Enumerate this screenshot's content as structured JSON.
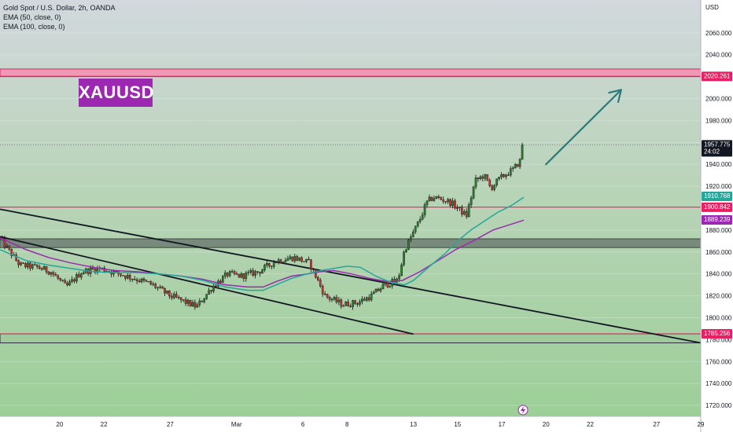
{
  "legend": {
    "symbol": "Gold Spot / U.S. Dollar, 2h, OANDA",
    "ema50": "EMA (50, close, 0)",
    "ema100": "EMA (100, close, 0)"
  },
  "label": "XAUUSD",
  "chart_data": {
    "type": "candlestick",
    "currency": "USD",
    "ylim": [
      1710,
      2090
    ],
    "y_ticks": [
      "1720.000",
      "1740.000",
      "1760.000",
      "1780.000",
      "1800.000",
      "1820.000",
      "1840.000",
      "1860.000",
      "1880.000",
      "1900.000",
      "1920.000",
      "1940.000",
      "1960.000",
      "1980.000",
      "2000.000",
      "2020.000",
      "2040.000",
      "2060.000"
    ],
    "x_ticks": [
      "20",
      "22",
      "27",
      "Mar",
      "6",
      "8",
      "13",
      "15",
      "17",
      "20",
      "22",
      "27",
      "29"
    ],
    "x_tick_positions": [
      0,
      2,
      5,
      8,
      11,
      13,
      16,
      18,
      20,
      22,
      24,
      27,
      29
    ],
    "x_last_candle": 21,
    "x_range": [
      -2.7,
      29
    ],
    "price": 1957.775,
    "countdown": "24:02",
    "price_series_days": [
      -2.7,
      -1.8,
      -1.0,
      -0.4,
      0.3,
      1.0,
      1.8,
      2.7,
      3.5,
      4.2,
      5.0,
      5.6,
      6.2,
      6.9,
      7.6,
      8.2,
      9.0,
      9.8,
      10.6,
      11.3,
      12.0,
      12.8,
      13.5,
      14.1,
      14.7,
      15.3,
      15.6,
      16.0,
      16.3,
      16.6,
      16.9,
      17.3,
      17.7,
      18.0,
      18.4,
      18.8,
      19.2,
      19.5,
      19.8,
      20.1,
      20.5,
      20.9,
      21.0
    ],
    "price_series": [
      1872,
      1848,
      1846,
      1842,
      1828,
      1842,
      1845,
      1840,
      1835,
      1830,
      1820,
      1815,
      1810,
      1828,
      1840,
      1838,
      1842,
      1852,
      1855,
      1850,
      1820,
      1812,
      1814,
      1820,
      1830,
      1834,
      1862,
      1878,
      1890,
      1905,
      1910,
      1908,
      1905,
      1900,
      1893,
      1925,
      1930,
      1918,
      1925,
      1930,
      1935,
      1945,
      1957
    ],
    "ema50": [
      1862,
      1852,
      1848,
      1845,
      1842,
      1841,
      1841,
      1840,
      1838,
      1834,
      1828,
      1825,
      1825,
      1830,
      1836,
      1840,
      1843,
      1845,
      1847,
      1846,
      1838,
      1832,
      1830,
      1834,
      1848,
      1858,
      1870,
      1880,
      1888,
      1896,
      1902,
      1910
    ],
    "ema50_days": [
      -2.7,
      -1.5,
      -0.5,
      0.5,
      1.5,
      2.5,
      3.5,
      4.5,
      5.5,
      6.5,
      7.5,
      8.5,
      9.2,
      9.8,
      10.5,
      11.2,
      11.8,
      12.4,
      13.0,
      13.6,
      14.3,
      15.0,
      15.6,
      16.0,
      16.8,
      17.4,
      18.0,
      18.6,
      19.2,
      19.8,
      20.4,
      21.0
    ],
    "ema100": [
      1873,
      1862,
      1855,
      1850,
      1846,
      1843,
      1842,
      1840,
      1838,
      1835,
      1830,
      1828,
      1828,
      1833,
      1838,
      1840,
      1842,
      1843,
      1840,
      1836,
      1833,
      1834,
      1842,
      1852,
      1862,
      1870,
      1880,
      1889
    ],
    "ema100_days": [
      -2.7,
      -1.5,
      -0.5,
      0.5,
      1.5,
      2.5,
      3.5,
      4.5,
      5.5,
      6.5,
      7.5,
      8.5,
      9.2,
      9.8,
      10.5,
      11.2,
      11.8,
      12.4,
      13.2,
      14.0,
      14.8,
      15.5,
      16.3,
      17.1,
      17.9,
      18.7,
      19.6,
      21.0
    ],
    "levels": [
      {
        "label": "2020.261",
        "value": 2020.261,
        "color": "#e91e63"
      },
      {
        "label": "1900.842",
        "value": 1900.842,
        "color": "#e91e63"
      },
      {
        "label": "1785.256",
        "value": 1785.256,
        "color": "#e91e63"
      }
    ],
    "ema_tags": [
      {
        "label": "1910.768",
        "value": 1910.768,
        "color": "#26a69a"
      },
      {
        "label": "1889.239",
        "value": 1889.239,
        "color": "#9c27b0"
      }
    ],
    "zones": [
      {
        "top": 2027,
        "bottom": 2020,
        "fill": "#f48fb1",
        "stroke": "#e91e63"
      },
      {
        "top": 1872,
        "bottom": 1864,
        "fill": "#6d7c72",
        "stroke": "#404a44"
      },
      {
        "top": 1785.3,
        "bottom": 1777,
        "fill": "#9ec99a",
        "stroke": "#2a2e39"
      }
    ],
    "trendlines": [
      {
        "from": [
          -2.7,
          1899
        ],
        "to": [
          29,
          1777
        ]
      },
      {
        "from": [
          -2.7,
          1874
        ],
        "to": [
          16.0,
          1785
        ]
      }
    ],
    "arrow": {
      "from": [
        22.0,
        1940
      ],
      "to": [
        25.4,
        2008
      ]
    }
  }
}
